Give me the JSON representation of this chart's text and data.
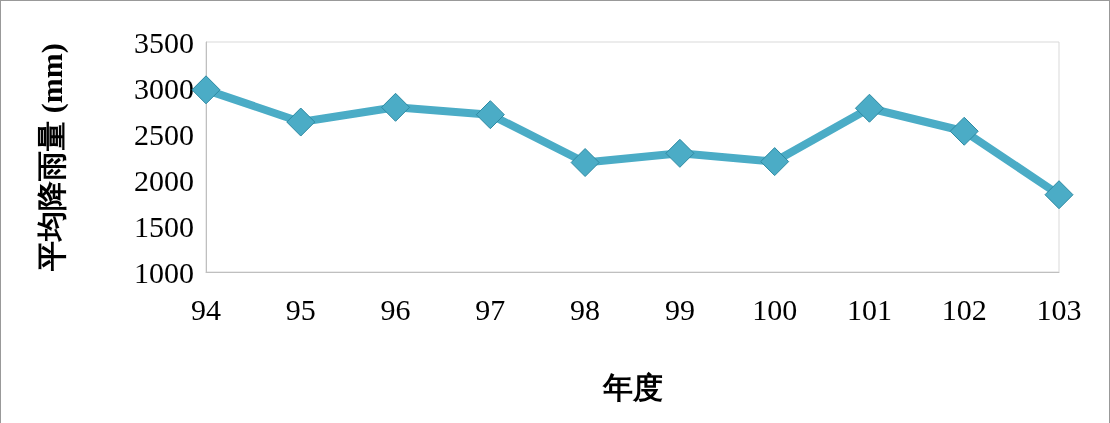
{
  "chart_data": {
    "type": "line",
    "xlabel": "年度",
    "ylabel": "平均降雨量 (mm)",
    "categories": [
      "94",
      "95",
      "96",
      "97",
      "98",
      "99",
      "100",
      "101",
      "102",
      "103"
    ],
    "series": [
      {
        "color": "#4bacc6",
        "values": [
          2980,
          2630,
          2790,
          2710,
          2190,
          2290,
          2200,
          2780,
          2530,
          1840
        ]
      }
    ],
    "ylim": [
      1000,
      3500
    ],
    "yticks": [
      1000,
      1500,
      2000,
      2500,
      3000,
      3500
    ],
    "grid": false,
    "marker": "diamond",
    "line_style": "solid"
  }
}
